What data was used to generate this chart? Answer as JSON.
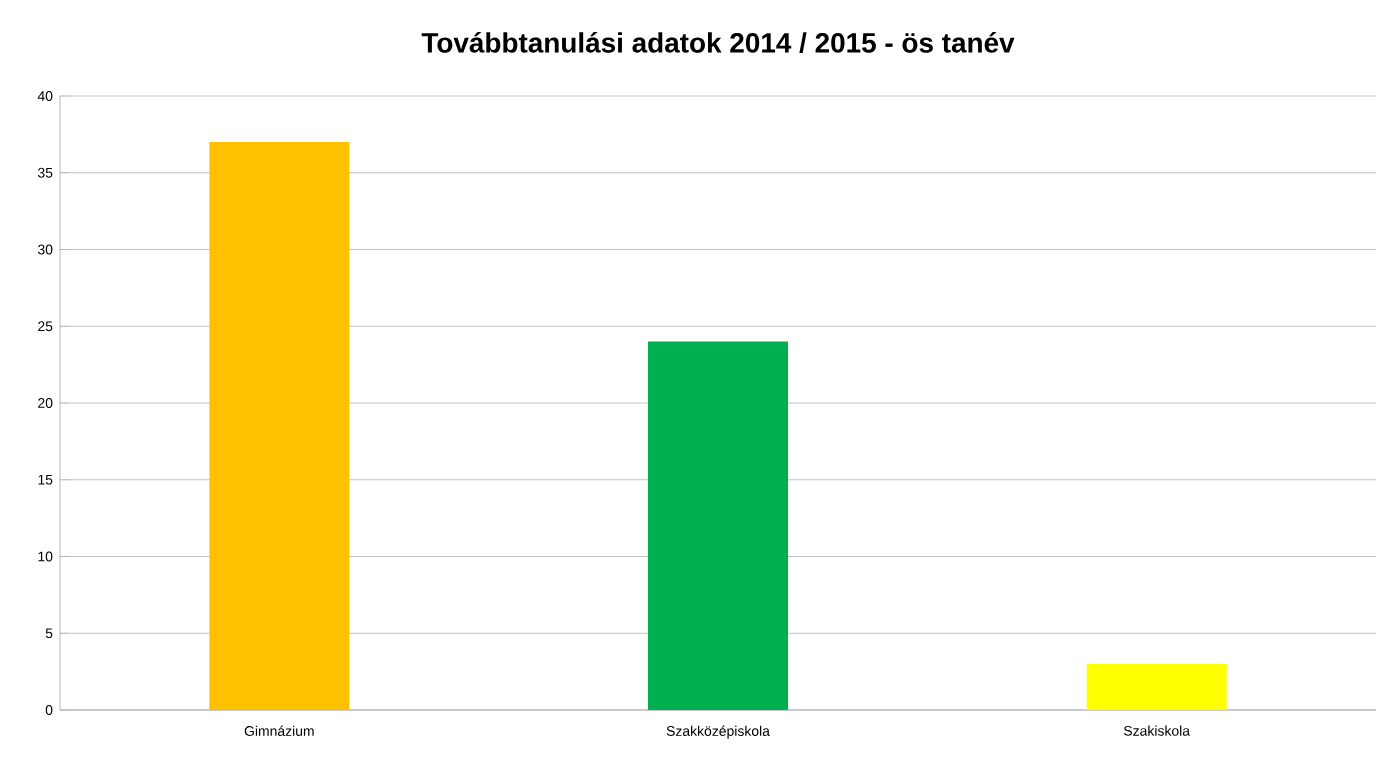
{
  "chart_data": {
    "type": "bar",
    "title": "Továbbtanulási adatok 2014 / 2015 - ös tanév",
    "categories": [
      "Gimnázium",
      "Szakközépiskola",
      "Szakiskola"
    ],
    "values": [
      37,
      24,
      3
    ],
    "colors": [
      "#ffc000",
      "#00b050",
      "#ffff00"
    ],
    "ylim": [
      0,
      40
    ],
    "yticks": [
      0,
      5,
      10,
      15,
      20,
      25,
      30,
      35,
      40
    ],
    "grid": "y"
  }
}
